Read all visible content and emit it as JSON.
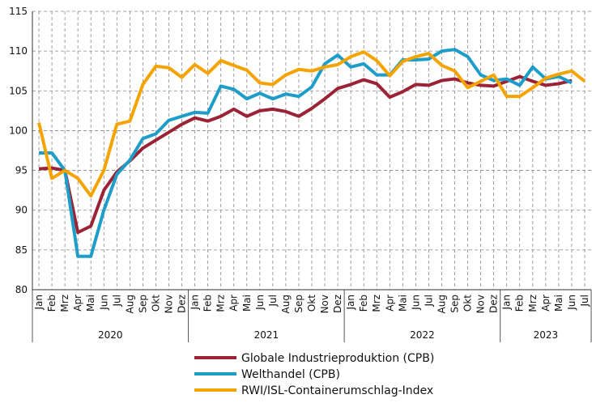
{
  "chart_data": {
    "type": "line",
    "categories": [
      "Jan",
      "Feb",
      "Mrz",
      "Apr",
      "Mai",
      "Jun",
      "Jul",
      "Aug",
      "Sep",
      "Okt",
      "Nov",
      "Dez",
      "Jan",
      "Feb",
      "Mrz",
      "Apr",
      "Mai",
      "Jun",
      "Jul",
      "Aug",
      "Sep",
      "Okt",
      "Nov",
      "Dez",
      "Jan",
      "Feb",
      "Mrz",
      "Apr",
      "Mai",
      "Jun",
      "Jul",
      "Aug",
      "Sep",
      "Okt",
      "Nov",
      "Dez",
      "Jan",
      "Feb",
      "Mrz",
      "Apr",
      "Mai",
      "Jun",
      "Jul"
    ],
    "years": [
      "2020",
      "2021",
      "2022",
      "2023"
    ],
    "ylim": [
      80,
      115
    ],
    "yticks": [
      80,
      85,
      90,
      95,
      100,
      105,
      110,
      115
    ],
    "grid": true,
    "series": [
      {
        "name": "Globale Industrieproduktion (CPB)",
        "color": "#9b2335",
        "values": [
          95.2,
          95.3,
          95.0,
          87.2,
          88.0,
          92.5,
          94.8,
          96.2,
          97.8,
          98.8,
          99.8,
          100.8,
          101.6,
          101.2,
          101.8,
          102.7,
          101.8,
          102.5,
          102.7,
          102.4,
          101.8,
          102.8,
          104.0,
          105.3,
          105.8,
          106.4,
          105.9,
          104.2,
          104.9,
          105.8,
          105.7,
          106.3,
          106.5,
          106.0,
          105.7,
          105.6,
          106.2,
          106.8,
          106.2,
          105.7,
          105.9,
          106.3,
          null
        ]
      },
      {
        "name": "Welthandel (CPB)",
        "color": "#1e9dc8",
        "values": [
          97.2,
          97.2,
          95.0,
          84.2,
          84.2,
          90.0,
          94.5,
          96.3,
          99.0,
          99.6,
          101.3,
          101.8,
          102.3,
          102.2,
          105.6,
          105.2,
          104.0,
          104.7,
          104.0,
          104.6,
          104.3,
          105.5,
          108.4,
          109.5,
          108.0,
          108.4,
          107.0,
          107.0,
          108.9,
          108.9,
          109.0,
          110.0,
          110.2,
          109.3,
          107.0,
          106.3,
          106.5,
          105.7,
          108.0,
          106.5,
          106.8,
          106.0,
          null
        ]
      },
      {
        "name": "RWI/ISL-Containerumschlag-Index",
        "color": "#f5a300",
        "values": [
          101.0,
          94.0,
          95.0,
          94.0,
          91.8,
          95.0,
          100.8,
          101.2,
          105.8,
          108.1,
          107.9,
          106.7,
          108.3,
          107.2,
          108.8,
          108.2,
          107.6,
          106.0,
          105.8,
          107.0,
          107.7,
          107.5,
          108.0,
          108.3,
          109.3,
          109.9,
          108.8,
          106.9,
          108.7,
          109.3,
          109.7,
          108.2,
          107.5,
          105.4,
          106.2,
          107.0,
          104.3,
          104.3,
          105.4,
          106.6,
          107.1,
          107.5,
          106.2
        ]
      }
    ]
  }
}
